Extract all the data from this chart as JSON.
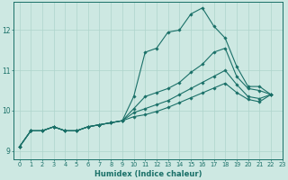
{
  "bg_color": "#cde8e2",
  "grid_color": "#aed4cc",
  "line_color": "#1a7068",
  "xlabel": "Humidex (Indice chaleur)",
  "xlim": [
    -0.5,
    23
  ],
  "ylim": [
    8.8,
    12.7
  ],
  "yticks": [
    9,
    10,
    11,
    12
  ],
  "xticks": [
    0,
    1,
    2,
    3,
    4,
    5,
    6,
    7,
    8,
    9,
    10,
    11,
    12,
    13,
    14,
    15,
    16,
    17,
    18,
    19,
    20,
    21,
    22,
    23
  ],
  "series": [
    [
      9.1,
      9.5,
      9.5,
      9.6,
      9.5,
      9.5,
      9.6,
      9.65,
      9.7,
      9.75,
      10.35,
      11.45,
      11.55,
      11.95,
      12.0,
      12.4,
      12.55,
      12.1,
      11.8,
      11.1,
      10.6,
      10.6,
      10.4
    ],
    [
      9.1,
      9.5,
      9.5,
      9.6,
      9.5,
      9.5,
      9.6,
      9.65,
      9.7,
      9.75,
      10.05,
      10.35,
      10.45,
      10.55,
      10.7,
      10.95,
      11.15,
      11.45,
      11.55,
      10.85,
      10.55,
      10.5,
      10.4
    ],
    [
      9.1,
      9.5,
      9.5,
      9.6,
      9.5,
      9.5,
      9.6,
      9.65,
      9.7,
      9.75,
      9.95,
      10.05,
      10.15,
      10.25,
      10.4,
      10.55,
      10.7,
      10.85,
      11.0,
      10.65,
      10.35,
      10.3,
      10.4
    ],
    [
      9.1,
      9.5,
      9.5,
      9.6,
      9.5,
      9.5,
      9.6,
      9.65,
      9.7,
      9.75,
      9.85,
      9.9,
      9.98,
      10.08,
      10.2,
      10.32,
      10.44,
      10.56,
      10.68,
      10.45,
      10.28,
      10.22,
      10.4
    ]
  ]
}
